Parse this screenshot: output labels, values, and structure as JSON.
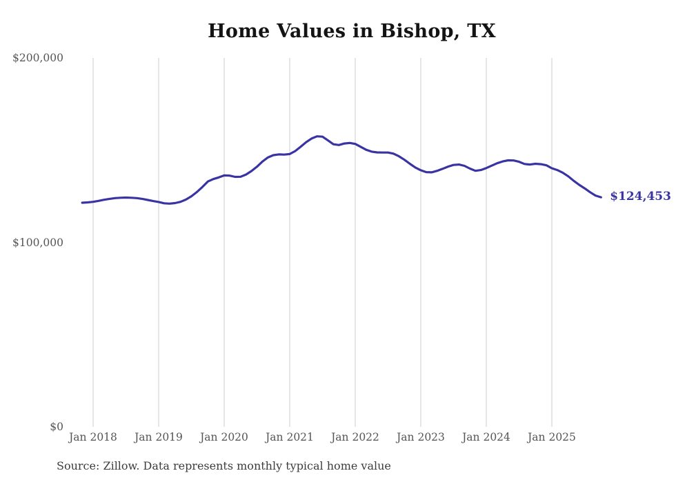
{
  "chart_data": {
    "type": "line",
    "title": "Home Values in Bishop, TX",
    "xlabel": "",
    "ylabel": "",
    "unit": "USD",
    "series_name": "Monthly typical home value",
    "legend": "none",
    "grid": "vertical-only",
    "ylim": [
      0,
      200000
    ],
    "x_tick_labels": [
      "Jan 2018",
      "Jan 2019",
      "Jan 2020",
      "Jan 2021",
      "Jan 2022",
      "Jan 2023",
      "Jan 2024",
      "Jan 2025"
    ],
    "y_ticks": [
      {
        "value": 0,
        "label": "$0"
      },
      {
        "value": 100000,
        "label": "$100,000"
      },
      {
        "value": 200000,
        "label": "$200,000"
      }
    ],
    "end_annotation": "$124,453",
    "last_value": 124453,
    "months": [
      "2017-11",
      "2017-12",
      "2018-01",
      "2018-02",
      "2018-03",
      "2018-04",
      "2018-05",
      "2018-06",
      "2018-07",
      "2018-08",
      "2018-09",
      "2018-10",
      "2018-11",
      "2018-12",
      "2019-01",
      "2019-02",
      "2019-03",
      "2019-04",
      "2019-05",
      "2019-06",
      "2019-07",
      "2019-08",
      "2019-09",
      "2019-10",
      "2019-11",
      "2019-12",
      "2020-01",
      "2020-02",
      "2020-03",
      "2020-04",
      "2020-05",
      "2020-06",
      "2020-07",
      "2020-08",
      "2020-09",
      "2020-10",
      "2020-11",
      "2020-12",
      "2021-01",
      "2021-02",
      "2021-03",
      "2021-04",
      "2021-05",
      "2021-06",
      "2021-07",
      "2021-08",
      "2021-09",
      "2021-10",
      "2021-11",
      "2021-12",
      "2022-01",
      "2022-02",
      "2022-03",
      "2022-04",
      "2022-05",
      "2022-06",
      "2022-07",
      "2022-08",
      "2022-09",
      "2022-10",
      "2022-11",
      "2022-12",
      "2023-01",
      "2023-02",
      "2023-03",
      "2023-04",
      "2023-05",
      "2023-06",
      "2023-07",
      "2023-08",
      "2023-09",
      "2023-10",
      "2023-11",
      "2023-12",
      "2024-01",
      "2024-02",
      "2024-03",
      "2024-04",
      "2024-05",
      "2024-06",
      "2024-07",
      "2024-08",
      "2024-09",
      "2024-10",
      "2024-11",
      "2024-12",
      "2025-01",
      "2025-02",
      "2025-03",
      "2025-04",
      "2025-05",
      "2025-06",
      "2025-07",
      "2025-08",
      "2025-09",
      "2025-10"
    ],
    "values": [
      121500,
      121700,
      122000,
      122500,
      123100,
      123600,
      124000,
      124200,
      124300,
      124200,
      124000,
      123600,
      123000,
      122400,
      121900,
      121200,
      121000,
      121300,
      122000,
      123200,
      125000,
      127300,
      130000,
      133000,
      134300,
      135200,
      136300,
      136200,
      135500,
      135600,
      136800,
      138700,
      141000,
      143800,
      146000,
      147300,
      147700,
      147600,
      147900,
      149500,
      151800,
      154300,
      156300,
      157500,
      157300,
      155300,
      153200,
      152800,
      153600,
      153900,
      153400,
      151800,
      150200,
      149200,
      148800,
      148700,
      148700,
      148100,
      146700,
      144800,
      142600,
      140600,
      139100,
      138100,
      138000,
      138800,
      139900,
      141100,
      142000,
      142200,
      141500,
      140000,
      138800,
      139200,
      140300,
      141600,
      142900,
      143900,
      144500,
      144400,
      143700,
      142500,
      142200,
      142600,
      142400,
      141800,
      140200,
      139200,
      137800,
      135800,
      133400,
      131200,
      129300,
      127200,
      125400,
      124453
    ]
  },
  "source_note": "Source: Zillow. Data represents monthly typical home value",
  "colors": {
    "line": "#3a34a3",
    "grid": "#cccccc",
    "axis_text": "#555555",
    "title_text": "#141414",
    "source_text": "#3c3c3c",
    "background": "#ffffff"
  }
}
